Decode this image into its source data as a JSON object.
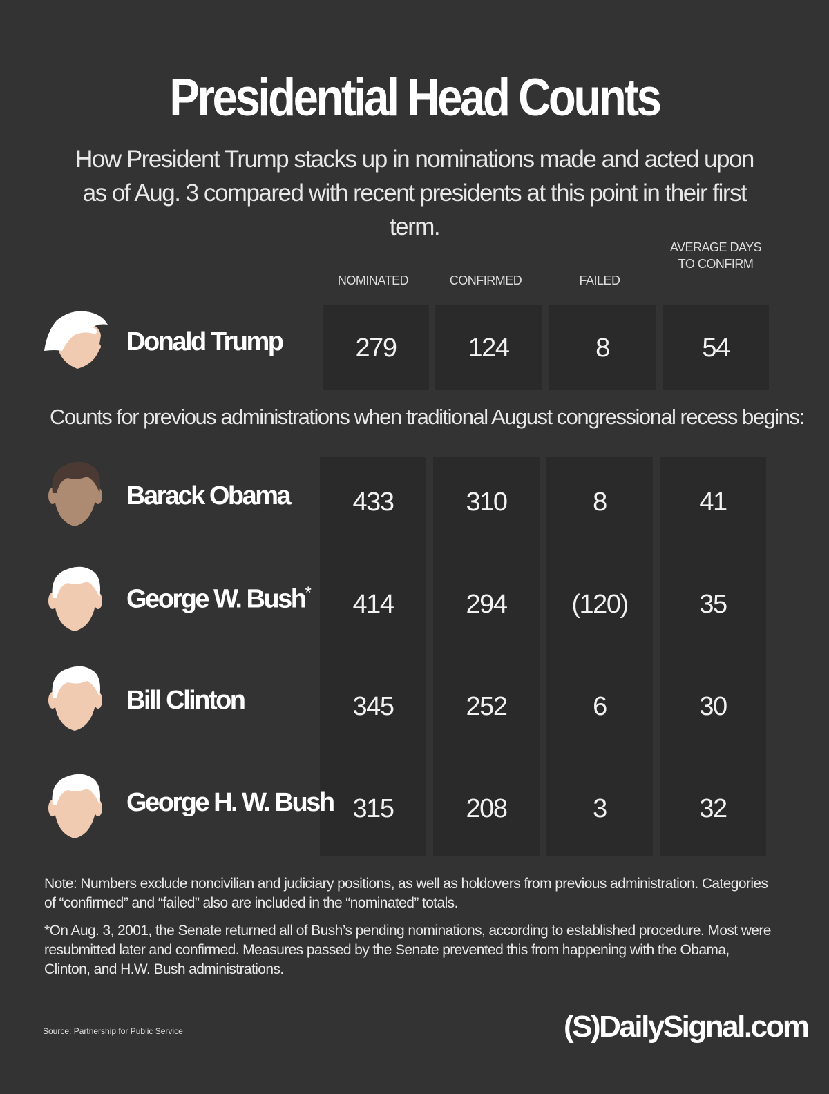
{
  "title": "Presidential Head Counts",
  "subtitle": "How President Trump stacks up in nominations made and acted upon as of Aug. 3 compared with recent presidents at this point in their first term.",
  "between_text": "Counts for previous administrations when traditional August congressional recess begins:",
  "note": "Note: Numbers exclude noncivilian and judiciary positions, as well as holdovers from previous administration. Categories of “confirmed” and “failed” also are included in the “nominated” totals.",
  "footnote": "*On Aug. 3, 2001, the Senate returned all of  Bush’s pending nominations, according to established procedure. Most were resubmitted later and confirmed. Measures passed by the Senate prevented this from happening with the Obama, Clinton, and H.W. Bush administrations.",
  "source": "Source: Partnership for Public Service",
  "brand": "(S)DailySignal.com",
  "colors": {
    "background": "#333333",
    "cell": "#2a2a2a",
    "skin_light": "#f1cbb1",
    "skin_dark": "#ad8b73",
    "hair": "#ffffff"
  },
  "chart_data": {
    "type": "table",
    "columns": [
      "NOMINATED",
      "CONFIRMED",
      "FAILED",
      "AVERAGE DAYS TO CONFIRM"
    ],
    "rows": [
      {
        "name": "Donald Trump",
        "marker": "",
        "values": [
          "279",
          "124",
          "8",
          "54"
        ]
      },
      {
        "name": "Barack Obama",
        "marker": "",
        "values": [
          "433",
          "310",
          "8",
          "41"
        ]
      },
      {
        "name": "George W. Bush",
        "marker": "*",
        "values": [
          "414",
          "294",
          "(120)",
          "35"
        ]
      },
      {
        "name": "Bill Clinton",
        "marker": "",
        "values": [
          "345",
          "252",
          "6",
          "30"
        ]
      },
      {
        "name": "George H. W. Bush",
        "marker": "",
        "values": [
          "315",
          "208",
          "3",
          "32"
        ]
      }
    ]
  }
}
